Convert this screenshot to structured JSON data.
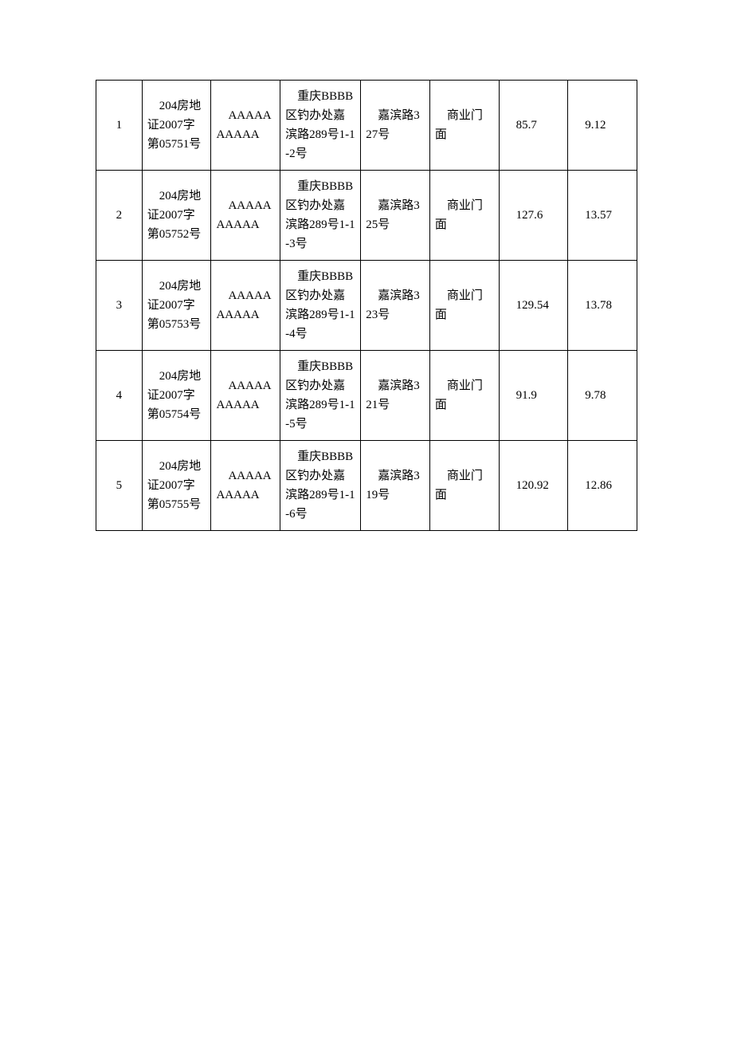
{
  "table": {
    "columns": [
      {
        "key": "idx",
        "class": "col-idx"
      },
      {
        "key": "cert",
        "class": "col-cert"
      },
      {
        "key": "owner",
        "class": "col-owner"
      },
      {
        "key": "addr1",
        "class": "col-addr1"
      },
      {
        "key": "addr2",
        "class": "col-addr2"
      },
      {
        "key": "type",
        "class": "col-type"
      },
      {
        "key": "num1",
        "class": "col-num1"
      },
      {
        "key": "num2",
        "class": "col-num2"
      }
    ],
    "rows": [
      {
        "idx": "1",
        "cert": "    204房地证2007字第05751号",
        "owner": "    AAAAAAAAAA",
        "addr1": "    重庆BBBB区钓办处嘉滨路289号1-1-2号",
        "addr2": "    嘉滨路327号",
        "type": "    商业门面",
        "num1": "    85.7",
        "num2": "    9.12"
      },
      {
        "idx": "2",
        "cert": "    204房地证2007字第05752号",
        "owner": "    AAAAAAAAAA",
        "addr1": "    重庆BBBB区钓办处嘉滨路289号1-1-3号",
        "addr2": "    嘉滨路325号",
        "type": "    商业门面",
        "num1": "    127.6",
        "num2": "    13.57"
      },
      {
        "idx": "3",
        "cert": "    204房地证2007字第05753号",
        "owner": "    AAAAAAAAAA",
        "addr1": "    重庆BBBB区钓办处嘉滨路289号1-1-4号",
        "addr2": "    嘉滨路323号",
        "type": "    商业门面",
        "num1": "    129.54",
        "num2": "    13.78"
      },
      {
        "idx": "4",
        "cert": "    204房地证2007字第05754号",
        "owner": "    AAAAAAAAAA",
        "addr1": "    重庆BBBB区钓办处嘉滨路289号1-1-5号",
        "addr2": "    嘉滨路321号",
        "type": "    商业门面",
        "num1": "    91.9",
        "num2": "    9.78"
      },
      {
        "idx": "5",
        "cert": "    204房地证2007字第05755号",
        "owner": "    AAAAAAAAAA",
        "addr1": "    重庆BBBB区钓办处嘉滨路289号1-1-6号",
        "addr2": "    嘉滨路319号",
        "type": "    商业门面",
        "num1": "    120.92",
        "num2": "    12.86"
      }
    ],
    "border_color": "#000000",
    "background_color": "#ffffff",
    "text_color": "#000000",
    "font_size": 15
  }
}
